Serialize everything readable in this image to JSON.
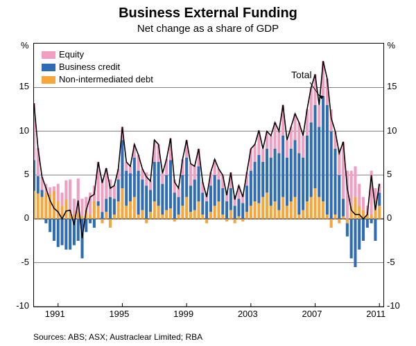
{
  "title": "Business External Funding",
  "subtitle": "Net change as a share of GDP",
  "y_axis_label": "%",
  "legend": {
    "items": [
      {
        "label": "Equity",
        "color": "#f19ec2"
      },
      {
        "label": "Business credit",
        "color": "#2e6cb5"
      },
      {
        "label": "Non-intermediated debt",
        "color": "#f7a63c"
      }
    ]
  },
  "annotation": {
    "text": "Total"
  },
  "sources": "Sources: ABS; ASX; Austraclear Limited; RBA",
  "chart": {
    "type": "stacked-bar-with-line",
    "ylim": [
      -10,
      20
    ],
    "yticks": [
      -10,
      -5,
      0,
      5,
      10,
      15
    ],
    "xticks": [
      1991,
      1995,
      1999,
      2003,
      2007,
      2011
    ],
    "x_start": 1989.5,
    "x_end": 2011.25,
    "colors": {
      "equity": "#f19ec2",
      "credit": "#2e6cb5",
      "debt": "#f7a63c",
      "total_line": "#000000",
      "grid": "#000000",
      "background": "#ffffff"
    },
    "line_width": 1.6,
    "bar_width_ratio": 0.7,
    "series": [
      {
        "x": 1989.5,
        "equity": 6.5,
        "credit": 3.5,
        "debt": 3.2
      },
      {
        "x": 1989.75,
        "equity": 3.2,
        "credit": 2.0,
        "debt": 2.9
      },
      {
        "x": 1990.0,
        "equity": 1.5,
        "credit": 0.8,
        "debt": 2.5
      },
      {
        "x": 1990.25,
        "equity": 1.0,
        "credit": -0.5,
        "debt": 3.0
      },
      {
        "x": 1990.5,
        "equity": 0.8,
        "credit": -1.5,
        "debt": 2.8
      },
      {
        "x": 1990.75,
        "equity": 0.5,
        "credit": -2.5,
        "debt": 3.2
      },
      {
        "x": 1991.0,
        "equity": 2.0,
        "credit": -3.2,
        "debt": 2.0
      },
      {
        "x": 1991.25,
        "equity": 1.5,
        "credit": -3.0,
        "debt": 1.5
      },
      {
        "x": 1991.5,
        "equity": 2.2,
        "credit": -3.5,
        "debt": 2.2
      },
      {
        "x": 1991.75,
        "equity": 3.5,
        "credit": -3.5,
        "debt": 1.0
      },
      {
        "x": 1992.0,
        "equity": 1.8,
        "credit": -3.0,
        "debt": 0.5
      },
      {
        "x": 1992.25,
        "equity": 3.8,
        "credit": -2.5,
        "debt": 0.8
      },
      {
        "x": 1992.5,
        "equity": 2.0,
        "credit": -4.5,
        "debt": 0.3
      },
      {
        "x": 1992.75,
        "equity": 1.5,
        "credit": -1.5,
        "debt": 1.0
      },
      {
        "x": 1993.0,
        "equity": 2.5,
        "credit": -0.5,
        "debt": 0.5
      },
      {
        "x": 1993.25,
        "equity": 1.8,
        "credit": -1.0,
        "debt": 2.0
      },
      {
        "x": 1993.5,
        "equity": 4.5,
        "credit": 0.5,
        "debt": 1.5
      },
      {
        "x": 1993.75,
        "equity": 3.8,
        "credit": 0.8,
        "debt": -0.5
      },
      {
        "x": 1994.0,
        "equity": 3.5,
        "credit": 1.5,
        "debt": 0.8
      },
      {
        "x": 1994.25,
        "equity": 2.0,
        "credit": 2.5,
        "debt": -1.0
      },
      {
        "x": 1994.5,
        "equity": 1.5,
        "credit": 1.8,
        "debt": 0.5
      },
      {
        "x": 1994.75,
        "equity": 1.2,
        "credit": 2.5,
        "debt": 2.0
      },
      {
        "x": 1995.0,
        "equity": 1.5,
        "credit": 5.5,
        "debt": 3.5
      },
      {
        "x": 1995.25,
        "equity": 1.0,
        "credit": 4.0,
        "debt": 1.5
      },
      {
        "x": 1995.5,
        "equity": 0.8,
        "credit": 3.2,
        "debt": 2.0
      },
      {
        "x": 1995.75,
        "equity": 1.5,
        "credit": 4.5,
        "debt": 2.5
      },
      {
        "x": 1996.0,
        "equity": 1.8,
        "credit": 5.0,
        "debt": 0.5
      },
      {
        "x": 1996.25,
        "equity": 1.2,
        "credit": 3.5,
        "debt": 1.0
      },
      {
        "x": 1996.5,
        "equity": 1.5,
        "credit": 3.8,
        "debt": -0.5
      },
      {
        "x": 1996.75,
        "equity": 1.0,
        "credit": 2.5,
        "debt": 0.8
      },
      {
        "x": 1997.0,
        "equity": 2.5,
        "credit": 4.5,
        "debt": 2.0
      },
      {
        "x": 1997.25,
        "equity": 2.0,
        "credit": 5.0,
        "debt": 1.5
      },
      {
        "x": 1997.5,
        "equity": 1.2,
        "credit": 3.5,
        "debt": 0.5
      },
      {
        "x": 1997.75,
        "equity": 1.8,
        "credit": 4.0,
        "debt": 1.0
      },
      {
        "x": 1998.0,
        "equity": 2.5,
        "credit": 5.5,
        "debt": 1.2
      },
      {
        "x": 1998.25,
        "equity": 1.5,
        "credit": 3.0,
        "debt": -0.3
      },
      {
        "x": 1998.5,
        "equity": 1.0,
        "credit": 2.0,
        "debt": 0.5
      },
      {
        "x": 1998.75,
        "equity": 1.8,
        "credit": 3.5,
        "debt": 1.5
      },
      {
        "x": 1999.0,
        "equity": 2.0,
        "credit": 4.5,
        "debt": 2.5
      },
      {
        "x": 1999.25,
        "equity": 2.5,
        "credit": 3.0,
        "debt": 0.8
      },
      {
        "x": 1999.5,
        "equity": 1.5,
        "credit": 3.5,
        "debt": 1.0
      },
      {
        "x": 1999.75,
        "equity": 2.0,
        "credit": 4.0,
        "debt": 2.0
      },
      {
        "x": 2000.0,
        "equity": 1.2,
        "credit": 2.5,
        "debt": 0.5
      },
      {
        "x": 2000.25,
        "equity": 1.0,
        "credit": 2.0,
        "debt": -0.5
      },
      {
        "x": 2000.5,
        "equity": 1.5,
        "credit": 3.0,
        "debt": 0.8
      },
      {
        "x": 2000.75,
        "equity": 1.8,
        "credit": 3.5,
        "debt": 1.5
      },
      {
        "x": 2001.0,
        "equity": 1.2,
        "credit": 2.5,
        "debt": 2.0
      },
      {
        "x": 2001.25,
        "equity": 1.5,
        "credit": 3.0,
        "debt": 0.5
      },
      {
        "x": 2001.5,
        "equity": 1.0,
        "credit": 2.0,
        "debt": -0.3
      },
      {
        "x": 2001.75,
        "equity": 1.8,
        "credit": 2.5,
        "debt": 1.0
      },
      {
        "x": 2002.0,
        "equity": 1.2,
        "credit": 1.5,
        "debt": -0.5
      },
      {
        "x": 2002.25,
        "equity": 1.5,
        "credit": 2.0,
        "debt": 0.3
      },
      {
        "x": 2002.5,
        "equity": 1.0,
        "credit": 1.8,
        "debt": -0.3
      },
      {
        "x": 2002.75,
        "equity": 1.5,
        "credit": 3.0,
        "debt": 0.8
      },
      {
        "x": 2003.0,
        "equity": 2.5,
        "credit": 4.0,
        "debt": 1.5
      },
      {
        "x": 2003.25,
        "equity": 2.0,
        "credit": 4.5,
        "debt": 2.0
      },
      {
        "x": 2003.5,
        "equity": 2.8,
        "credit": 5.5,
        "debt": 1.8
      },
      {
        "x": 2003.75,
        "equity": 1.5,
        "credit": 4.0,
        "debt": 2.5
      },
      {
        "x": 2004.0,
        "equity": 2.0,
        "credit": 5.0,
        "debt": 3.0
      },
      {
        "x": 2004.25,
        "equity": 2.5,
        "credit": 5.5,
        "debt": 1.5
      },
      {
        "x": 2004.5,
        "equity": 3.0,
        "credit": 6.0,
        "debt": 2.0
      },
      {
        "x": 2004.75,
        "equity": 2.5,
        "credit": 6.5,
        "debt": 1.0
      },
      {
        "x": 2005.0,
        "equity": 3.5,
        "credit": 7.0,
        "debt": 2.5
      },
      {
        "x": 2005.25,
        "equity": 2.0,
        "credit": 5.5,
        "debt": 1.5
      },
      {
        "x": 2005.5,
        "equity": 2.5,
        "credit": 6.0,
        "debt": 2.0
      },
      {
        "x": 2005.75,
        "equity": 3.0,
        "credit": 6.5,
        "debt": 2.5
      },
      {
        "x": 2006.0,
        "equity": 3.5,
        "credit": 7.0,
        "debt": 0.5
      },
      {
        "x": 2006.25,
        "equity": 2.5,
        "credit": 6.0,
        "debt": 1.0
      },
      {
        "x": 2006.5,
        "equity": 3.0,
        "credit": 7.5,
        "debt": 2.0
      },
      {
        "x": 2006.75,
        "equity": 4.0,
        "credit": 8.5,
        "debt": 2.5
      },
      {
        "x": 2007.0,
        "equity": 3.5,
        "credit": 9.5,
        "debt": 3.5
      },
      {
        "x": 2007.25,
        "equity": 2.5,
        "credit": 8.0,
        "debt": 2.5
      },
      {
        "x": 2007.5,
        "equity": 4.0,
        "credit": 12.0,
        "debt": 2.0
      },
      {
        "x": 2007.75,
        "equity": 3.0,
        "credit": 12.5,
        "debt": 0.5
      },
      {
        "x": 2008.0,
        "equity": 2.5,
        "credit": 10.0,
        "debt": -1.0
      },
      {
        "x": 2008.25,
        "equity": 2.0,
        "credit": 7.5,
        "debt": 0.5
      },
      {
        "x": 2008.5,
        "equity": 3.0,
        "credit": 5.0,
        "debt": -0.5
      },
      {
        "x": 2008.75,
        "equity": 6.5,
        "credit": 2.0,
        "debt": 0.3
      },
      {
        "x": 2009.0,
        "equity": 5.5,
        "credit": -1.5,
        "debt": -0.5
      },
      {
        "x": 2009.25,
        "equity": 4.0,
        "credit": -4.5,
        "debt": 1.5
      },
      {
        "x": 2009.5,
        "equity": 3.5,
        "credit": -5.5,
        "debt": 2.5
      },
      {
        "x": 2009.75,
        "equity": 2.5,
        "credit": -3.5,
        "debt": 1.5
      },
      {
        "x": 2010.0,
        "equity": 1.5,
        "credit": -2.5,
        "debt": 1.0
      },
      {
        "x": 2010.25,
        "equity": 1.0,
        "credit": -1.0,
        "debt": 0.5
      },
      {
        "x": 2010.5,
        "equity": 5.0,
        "credit": -0.5,
        "debt": 0.5
      },
      {
        "x": 2010.75,
        "equity": 1.5,
        "credit": -2.5,
        "debt": 2.0
      },
      {
        "x": 2011.0,
        "equity": 1.0,
        "credit": 1.5,
        "debt": 1.5
      }
    ]
  }
}
